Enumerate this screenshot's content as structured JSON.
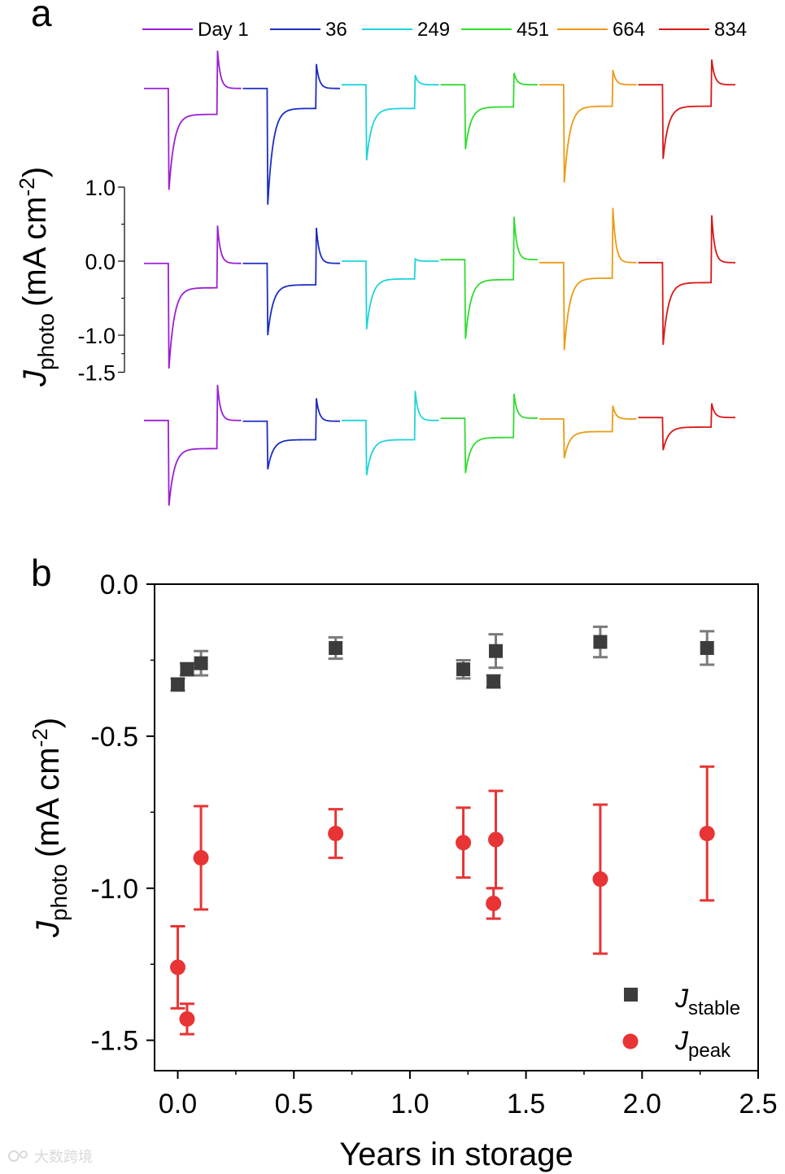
{
  "watermark": "大数跨境",
  "chart_data": [
    {
      "panel": "a",
      "type": "line",
      "title": "",
      "ylabel_main": "J",
      "ylabel_sub": "photo",
      "ylabel_unit": "(mA cm",
      "ylabel_exp": "-2",
      "ylabel_close": ")",
      "ylim": [
        -1.5,
        1.0
      ],
      "yticks": [
        1.0,
        0.0,
        -1.0,
        -1.5
      ],
      "ytick_labels": [
        "1.0",
        "0.0",
        "-1.0",
        "-1.5"
      ],
      "legend": [
        "Day 1",
        "36",
        "249",
        "451",
        "664",
        "834"
      ],
      "colors": [
        "#9b1fd6",
        "#1c2dc4",
        "#1fd3dc",
        "#2fdc2f",
        "#eb9b14",
        "#d91818"
      ],
      "rows": [
        {
          "row": 1,
          "baseline": [
            -0.03,
            -0.03,
            0.02,
            0.02,
            0.02,
            0.02
          ],
          "peak_neg": [
            -1.4,
            -1.6,
            -1.0,
            -0.85,
            -1.3,
            -0.98
          ],
          "stable": [
            -0.38,
            -0.3,
            -0.3,
            -0.28,
            -0.27,
            -0.27
          ],
          "peak_pos": [
            0.48,
            0.3,
            0.15,
            0.18,
            0.22,
            0.36
          ]
        },
        {
          "row": 2,
          "baseline": [
            -0.03,
            -0.03,
            0.0,
            0.02,
            -0.02,
            -0.02
          ],
          "peak_neg": [
            -1.45,
            -1.0,
            -0.92,
            -1.05,
            -1.2,
            -1.13
          ],
          "stable": [
            -0.36,
            -0.32,
            -0.24,
            -0.25,
            -0.23,
            -0.29
          ],
          "peak_pos": [
            0.48,
            0.45,
            0.03,
            0.6,
            0.72,
            0.62
          ]
        },
        {
          "row": 3,
          "baseline": [
            -0.02,
            -0.03,
            -0.02,
            0.01,
            0.0,
            0.02
          ],
          "peak_neg": [
            -1.17,
            -0.68,
            -0.76,
            -0.73,
            -0.53,
            -0.42
          ],
          "stable": [
            -0.4,
            -0.28,
            -0.28,
            -0.25,
            -0.17,
            -0.11
          ],
          "peak_pos": [
            0.46,
            0.28,
            0.38,
            0.34,
            0.18,
            0.21
          ]
        }
      ]
    },
    {
      "panel": "b",
      "type": "scatter",
      "title": "",
      "xlabel": "Years in storage",
      "ylabel_main": "J",
      "ylabel_sub": "photo",
      "ylabel_unit": "(mA cm",
      "ylabel_exp": "-2",
      "ylabel_close": ")",
      "xlim": [
        -0.1,
        2.5
      ],
      "ylim": [
        -1.6,
        0.0
      ],
      "xticks": [
        0.0,
        0.5,
        1.0,
        1.5,
        2.0,
        2.5
      ],
      "xtick_labels": [
        "0.0",
        "0.5",
        "1.0",
        "1.5",
        "2.0",
        "2.5"
      ],
      "yticks": [
        0.0,
        -0.5,
        -1.0,
        -1.5
      ],
      "ytick_labels": [
        "0.0",
        "-0.5",
        "-1.0",
        "-1.5"
      ],
      "series": [
        {
          "name_main": "J",
          "name_sub": "stable",
          "marker": "square",
          "color": "#3c3c3c",
          "error_color": "#7a7a7a",
          "x": [
            0.0,
            0.04,
            0.1,
            0.68,
            1.23,
            1.37,
            1.36,
            1.82,
            2.28
          ],
          "y": [
            -0.33,
            -0.28,
            -0.26,
            -0.21,
            -0.28,
            -0.22,
            -0.32,
            -0.19,
            -0.21
          ],
          "err": [
            0.02,
            0.02,
            0.04,
            0.035,
            0.03,
            0.055,
            0.02,
            0.05,
            0.055
          ]
        },
        {
          "name_main": "J",
          "name_sub": "peak",
          "marker": "circle",
          "color": "#e83434",
          "error_color": "#e83434",
          "x": [
            0.0,
            0.04,
            0.1,
            0.68,
            1.23,
            1.37,
            1.36,
            1.82,
            2.28
          ],
          "y": [
            -1.26,
            -1.43,
            -0.9,
            -0.82,
            -0.85,
            -0.84,
            -1.05,
            -0.97,
            -0.82
          ],
          "err": [
            0.135,
            0.05,
            0.17,
            0.08,
            0.115,
            0.16,
            0.05,
            0.245,
            0.22
          ]
        }
      ]
    }
  ]
}
